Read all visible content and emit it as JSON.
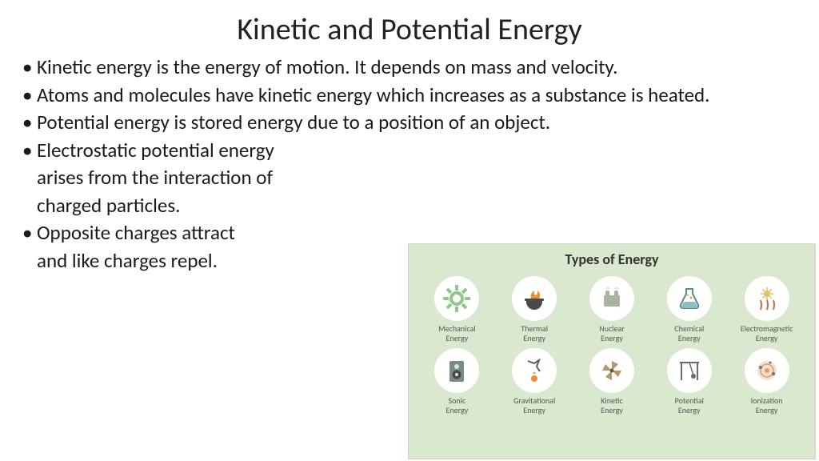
{
  "title": "Kinetic and Potential Energy",
  "bullets": [
    {
      "type": "bullet",
      "text": "Kinetic energy is the energy of motion. It depends on mass and velocity.",
      "narrow": false
    },
    {
      "type": "bullet",
      "text": "Atoms and molecules have kinetic energy which increases as a substance is heated.",
      "narrow": false
    },
    {
      "type": "bullet",
      "text": "Potential energy is stored energy due to a position of an object.",
      "narrow": false
    },
    {
      "type": "bullet",
      "text": "Electrostatic potential energy",
      "narrow": true
    },
    {
      "type": "cont",
      "text": "arises from the interaction of",
      "narrow": true
    },
    {
      "type": "cont",
      "text": "charged particles.",
      "narrow": true
    },
    {
      "type": "bullet",
      "text": "Opposite charges attract",
      "narrow": true
    },
    {
      "type": "cont",
      "text": "and like charges repel.",
      "narrow": true
    }
  ],
  "infographic": {
    "title": "Types of Energy",
    "bg_color": "#d9e8ce",
    "circle_bg": "#ffffff",
    "label_color": "#555555",
    "title_color": "#333333",
    "items": [
      {
        "label": "Mechanical Energy",
        "icon": "gear",
        "color": "#8fc78a"
      },
      {
        "label": "Thermal Energy",
        "icon": "pot-fire",
        "color": "#c08a6e"
      },
      {
        "label": "Nuclear Energy",
        "icon": "reactor",
        "color": "#a9b3a0"
      },
      {
        "label": "Chemical Energy",
        "icon": "flask",
        "color": "#8fbfbf"
      },
      {
        "label": "Electromagnetic Energy",
        "icon": "sun-rays",
        "color": "#e6bf6a"
      },
      {
        "label": "Sonic Energy",
        "icon": "speaker",
        "color": "#7a8a8a"
      },
      {
        "label": "Gravitational Energy",
        "icon": "falling",
        "color": "#9a8a7a"
      },
      {
        "label": "Kinetic Energy",
        "icon": "pinwheel",
        "color": "#b0986a"
      },
      {
        "label": "Potential Energy",
        "icon": "pendulum",
        "color": "#6a6a6a"
      },
      {
        "label": "Ionization Energy",
        "icon": "atom",
        "color": "#d69a7a"
      }
    ]
  }
}
